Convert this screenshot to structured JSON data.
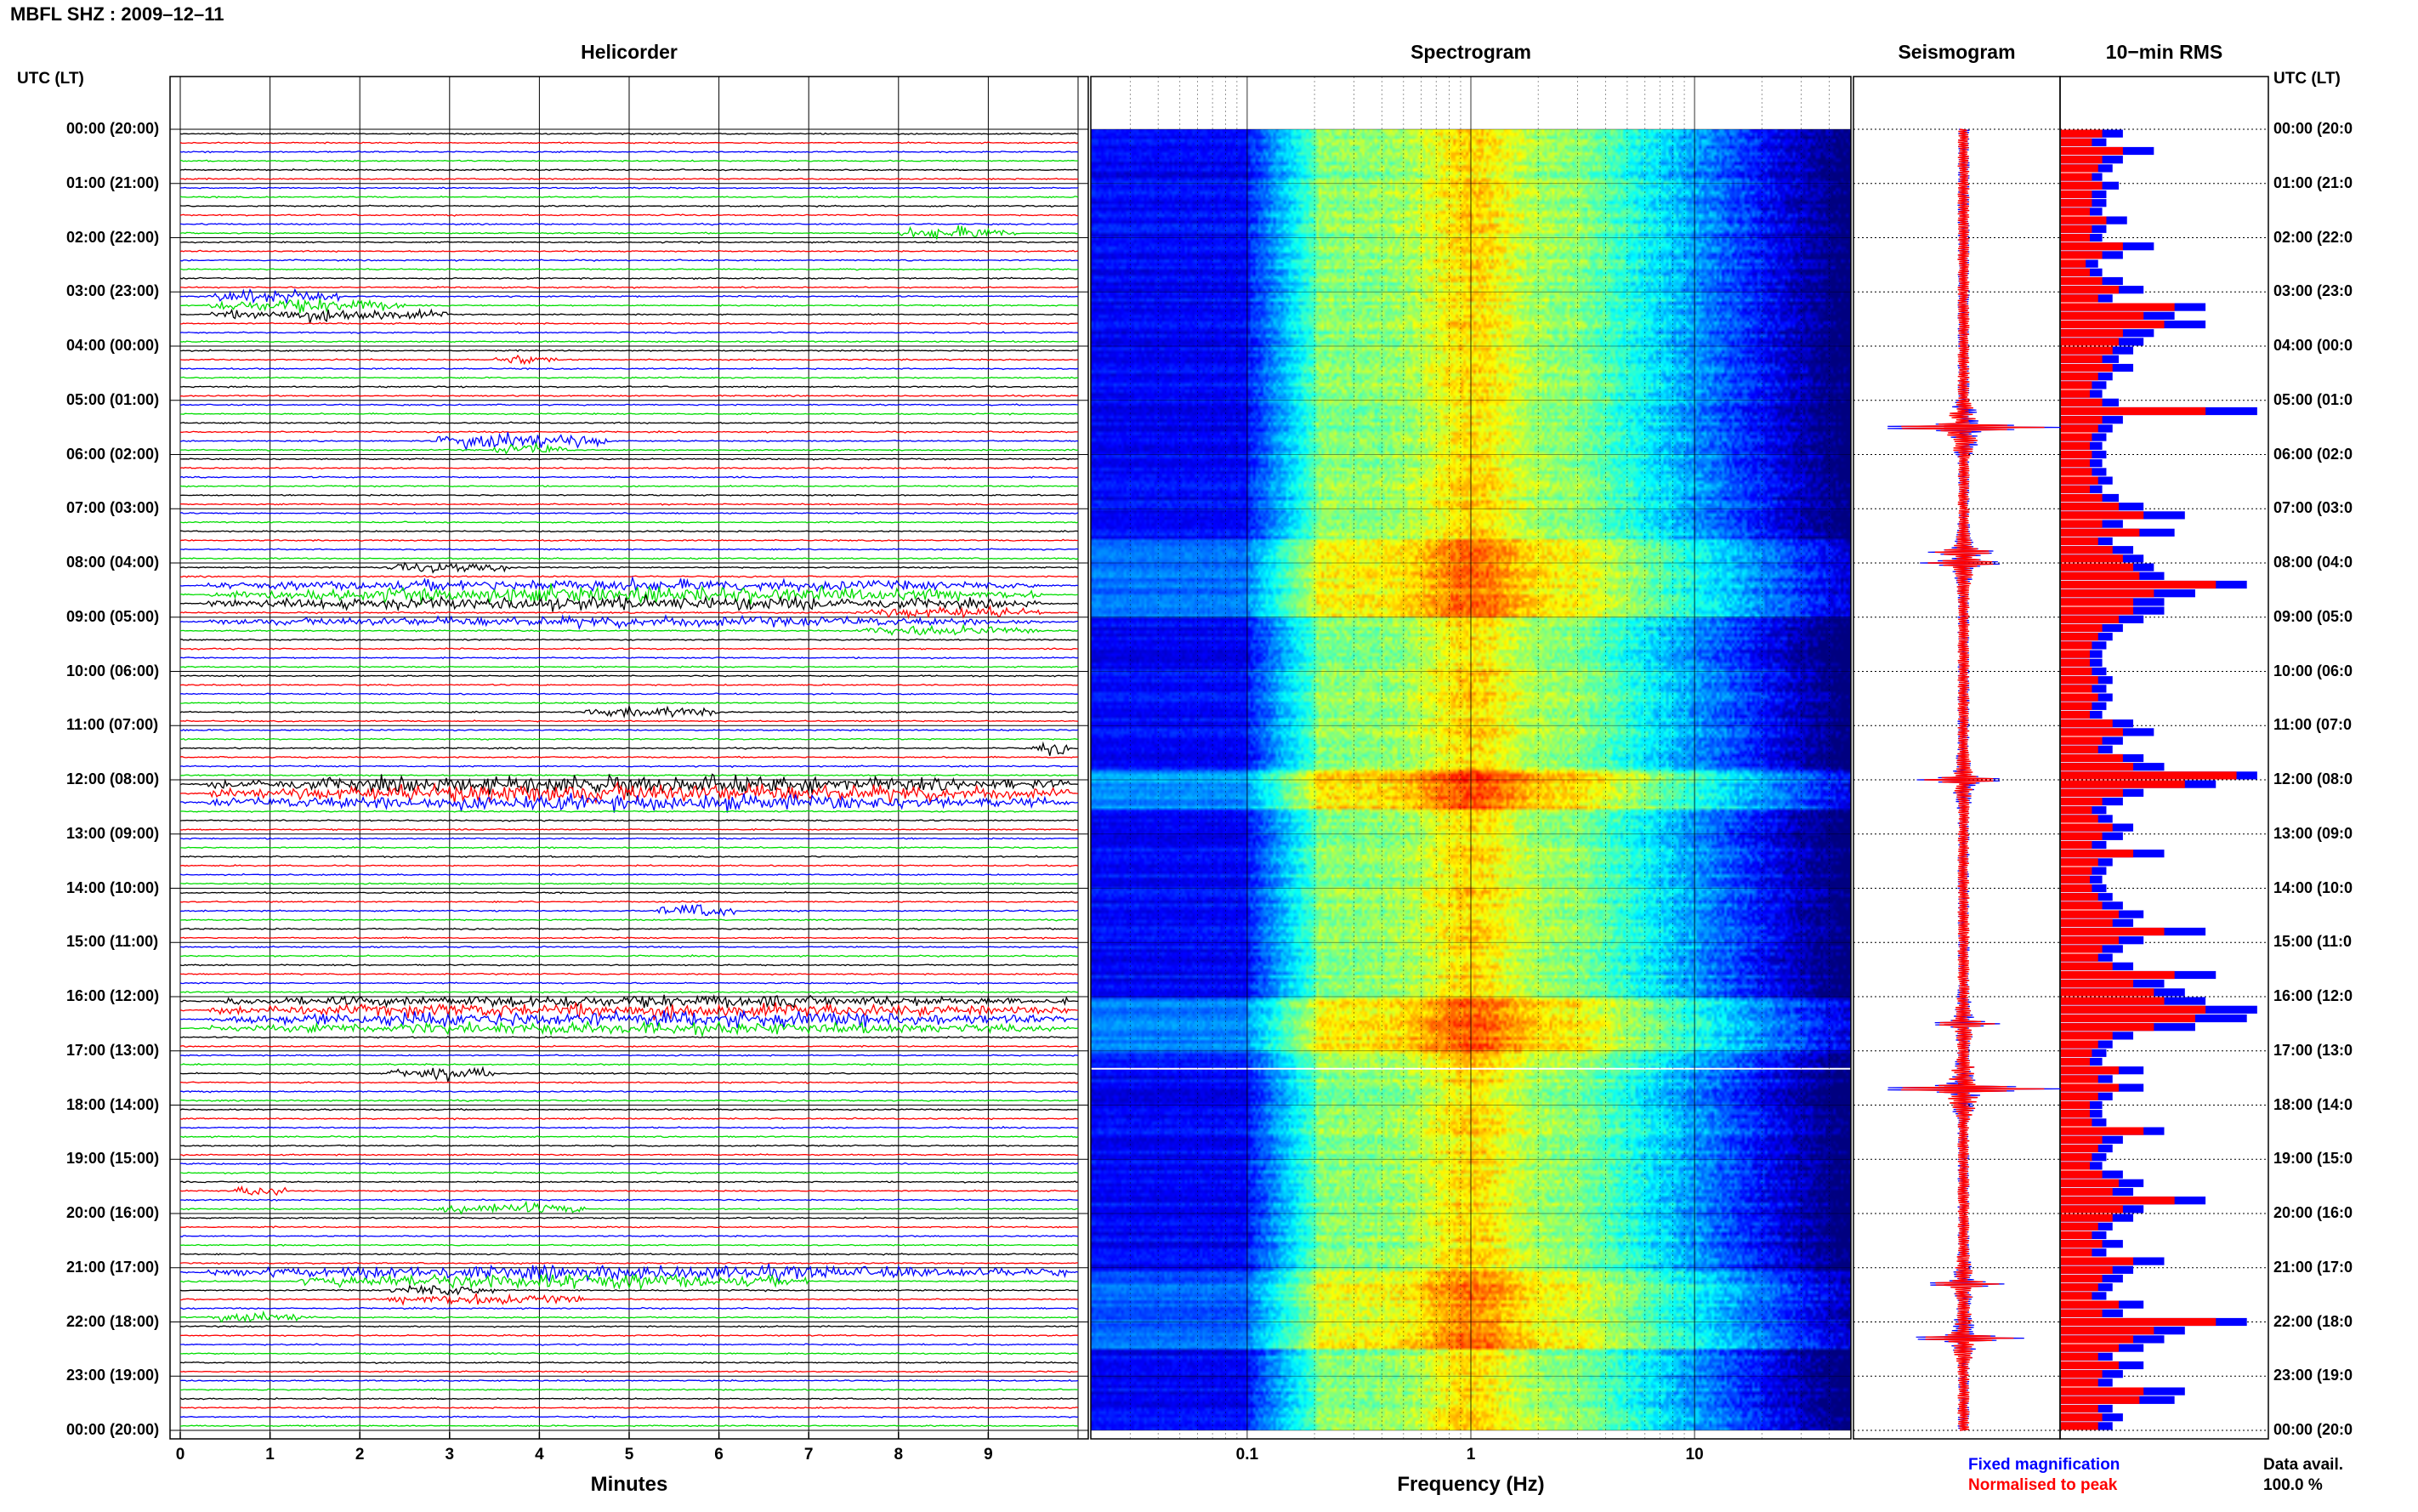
{
  "title": "MBFL SHZ : 2009–12–11",
  "panels": {
    "helicorder": "Helicorder",
    "spectrogram": "Spectrogram",
    "seismogram": "Seismogram",
    "rms": "10−min RMS"
  },
  "utc_header_left": "UTC (LT)",
  "utc_header_right": "UTC (LT)",
  "time_labels": [
    "00:00 (20:00)",
    "01:00 (21:00)",
    "02:00 (22:00)",
    "03:00 (23:00)",
    "04:00 (00:00)",
    "05:00 (01:00)",
    "06:00 (02:00)",
    "07:00 (03:00)",
    "08:00 (04:00)",
    "09:00 (05:00)",
    "10:00 (06:00)",
    "11:00 (07:00)",
    "12:00 (08:00)",
    "13:00 (09:00)",
    "14:00 (10:00)",
    "15:00 (11:00)",
    "16:00 (12:00)",
    "17:00 (13:00)",
    "18:00 (14:00)",
    "19:00 (15:00)",
    "20:00 (16:00)",
    "21:00 (17:00)",
    "22:00 (18:00)",
    "23:00 (19:00)",
    "00:00 (20:00)"
  ],
  "time_labels_right": [
    "00:00 (20:0",
    "01:00 (21:0",
    "02:00 (22:0",
    "03:00 (23:0",
    "04:00 (00:0",
    "05:00 (01:0",
    "06:00 (02:0",
    "07:00 (03:0",
    "08:00 (04:0",
    "09:00 (05:0",
    "10:00 (06:0",
    "11:00 (07:0",
    "12:00 (08:0",
    "13:00 (09:0",
    "14:00 (10:0",
    "15:00 (11:0",
    "16:00 (12:0",
    "17:00 (13:0",
    "18:00 (14:0",
    "19:00 (15:0",
    "20:00 (16:0",
    "21:00 (17:0",
    "22:00 (18:0",
    "23:00 (19:0",
    "00:00 (20:0"
  ],
  "x_axis": {
    "helicorder_label": "Minutes",
    "helicorder_ticks": [
      "0",
      "1",
      "2",
      "3",
      "4",
      "5",
      "6",
      "7",
      "8",
      "9"
    ],
    "spectrogram_label": "Frequency (Hz)",
    "spectrogram_ticks": [
      "0.1",
      "1",
      "10"
    ]
  },
  "legend": {
    "fixed": "Fixed magnification",
    "normalised": "Normalised to peak",
    "fixed_color": "#0000ff",
    "normalised_color": "#ff0000"
  },
  "data_avail": {
    "label": "Data avail.",
    "value": "100.0 %"
  },
  "chart_data": {
    "type": "heatmap",
    "title": "MBFL SHZ : 2009–12–11",
    "panels": [
      "Helicorder",
      "Spectrogram",
      "Seismogram",
      "10−min RMS"
    ],
    "helicorder": {
      "xlabel": "Minutes",
      "xlim": [
        0,
        10
      ],
      "rows": 144,
      "trace_colors": [
        "#000000",
        "#ff0000",
        "#0000ff",
        "#00dd00"
      ],
      "events": [
        {
          "row": 11,
          "start": 8.0,
          "end": 9.3,
          "amp": 0.65
        },
        {
          "row": 18,
          "start": 0.3,
          "end": 1.8,
          "amp": 0.7
        },
        {
          "row": 19,
          "start": 0.3,
          "end": 2.5,
          "amp": 0.7
        },
        {
          "row": 20,
          "start": 0.3,
          "end": 3.0,
          "amp": 0.6
        },
        {
          "row": 25,
          "start": 3.5,
          "end": 4.2,
          "amp": 0.5
        },
        {
          "row": 34,
          "start": 2.8,
          "end": 4.8,
          "amp": 0.9
        },
        {
          "row": 35,
          "start": 3.5,
          "end": 4.3,
          "amp": 0.6
        },
        {
          "row": 48,
          "start": 2.3,
          "end": 3.7,
          "amp": 0.5
        },
        {
          "row": 50,
          "start": 0.3,
          "end": 9.6,
          "amp": 0.6
        },
        {
          "row": 51,
          "start": 0.3,
          "end": 9.6,
          "amp": 0.8
        },
        {
          "row": 52,
          "start": 0.3,
          "end": 9.6,
          "amp": 0.7
        },
        {
          "row": 53,
          "start": 7.5,
          "end": 9.6,
          "amp": 0.6
        },
        {
          "row": 54,
          "start": 0.3,
          "end": 9.6,
          "amp": 0.5
        },
        {
          "row": 55,
          "start": 7.5,
          "end": 9.6,
          "amp": 0.5
        },
        {
          "row": 64,
          "start": 4.5,
          "end": 6.0,
          "amp": 0.5
        },
        {
          "row": 68,
          "start": 9.5,
          "end": 9.9,
          "amp": 0.6
        },
        {
          "row": 72,
          "start": 0.3,
          "end": 9.9,
          "amp": 0.9
        },
        {
          "row": 73,
          "start": 0.3,
          "end": 9.9,
          "amp": 1.0
        },
        {
          "row": 74,
          "start": 0.3,
          "end": 9.9,
          "amp": 0.8
        },
        {
          "row": 86,
          "start": 5.3,
          "end": 6.2,
          "amp": 0.7
        },
        {
          "row": 96,
          "start": 0.5,
          "end": 9.9,
          "amp": 0.6
        },
        {
          "row": 97,
          "start": 0.3,
          "end": 9.9,
          "amp": 0.7
        },
        {
          "row": 98,
          "start": 0.3,
          "end": 9.9,
          "amp": 0.8
        },
        {
          "row": 99,
          "start": 0.3,
          "end": 9.9,
          "amp": 0.6
        },
        {
          "row": 104,
          "start": 2.3,
          "end": 3.5,
          "amp": 0.8
        },
        {
          "row": 117,
          "start": 0.6,
          "end": 1.2,
          "amp": 0.6
        },
        {
          "row": 119,
          "start": 2.8,
          "end": 4.5,
          "amp": 0.6
        },
        {
          "row": 126,
          "start": 0.3,
          "end": 9.9,
          "amp": 0.7
        },
        {
          "row": 127,
          "start": 1.3,
          "end": 7.0,
          "amp": 0.8
        },
        {
          "row": 128,
          "start": 2.3,
          "end": 3.5,
          "amp": 0.6
        },
        {
          "row": 129,
          "start": 2.3,
          "end": 4.5,
          "amp": 0.6
        },
        {
          "row": 131,
          "start": 0.3,
          "end": 1.5,
          "amp": 0.5
        }
      ]
    },
    "spectrogram": {
      "xlabel": "Frequency (Hz)",
      "xscale": "log",
      "xlim": [
        0.02,
        50
      ],
      "ylim_hours": [
        0,
        24
      ]
    },
    "seismogram": {
      "spikes": [
        {
          "hour": 5.5,
          "amp": 1.0
        },
        {
          "hour": 7.8,
          "amp": 0.3
        },
        {
          "hour": 8.0,
          "amp": 0.4
        },
        {
          "hour": 12.0,
          "amp": 0.45
        },
        {
          "hour": 16.5,
          "amp": 0.35
        },
        {
          "hour": 17.7,
          "amp": 1.0
        },
        {
          "hour": 21.3,
          "amp": 0.4
        },
        {
          "hour": 22.3,
          "amp": 0.6
        }
      ]
    },
    "rms": {
      "xlabel": "",
      "series": [
        {
          "name": "Fixed magnification",
          "values": [
            0.3,
            0.22,
            0.45,
            0.3,
            0.25,
            0.2,
            0.28,
            0.22,
            0.22,
            0.2,
            0.32,
            0.22,
            0.2,
            0.45,
            0.3,
            0.18,
            0.2,
            0.3,
            0.4,
            0.25,
            0.7,
            0.55,
            0.7,
            0.45,
            0.4,
            0.35,
            0.28,
            0.35,
            0.25,
            0.22,
            0.2,
            0.28,
            0.95,
            0.3,
            0.25,
            0.22,
            0.2,
            0.22,
            0.2,
            0.22,
            0.25,
            0.2,
            0.28,
            0.4,
            0.6,
            0.3,
            0.55,
            0.25,
            0.35,
            0.4,
            0.45,
            0.5,
            0.9,
            0.65,
            0.5,
            0.5,
            0.4,
            0.3,
            0.25,
            0.22,
            0.2,
            0.2,
            0.22,
            0.25,
            0.22,
            0.25,
            0.22,
            0.2,
            0.35,
            0.45,
            0.3,
            0.25,
            0.4,
            0.5,
            0.95,
            0.75,
            0.4,
            0.3,
            0.22,
            0.25,
            0.35,
            0.3,
            0.22,
            0.5,
            0.25,
            0.22,
            0.2,
            0.22,
            0.25,
            0.3,
            0.4,
            0.35,
            0.7,
            0.4,
            0.3,
            0.25,
            0.35,
            0.75,
            0.5,
            0.6,
            0.7,
            0.95,
            0.9,
            0.65,
            0.35,
            0.25,
            0.22,
            0.2,
            0.4,
            0.25,
            0.4,
            0.25,
            0.2,
            0.2,
            0.22,
            0.5,
            0.3,
            0.25,
            0.22,
            0.2,
            0.3,
            0.4,
            0.35,
            0.7,
            0.4,
            0.35,
            0.25,
            0.22,
            0.3,
            0.22,
            0.5,
            0.35,
            0.3,
            0.25,
            0.22,
            0.4,
            0.3,
            0.9,
            0.6,
            0.5,
            0.4,
            0.25,
            0.4,
            0.3,
            0.25,
            0.6,
            0.55,
            0.25,
            0.3,
            0.25
          ]
        },
        {
          "name": "Normalised to peak",
          "values": [
            0.2,
            0.15,
            0.3,
            0.2,
            0.18,
            0.15,
            0.2,
            0.15,
            0.15,
            0.14,
            0.22,
            0.15,
            0.14,
            0.3,
            0.2,
            0.12,
            0.14,
            0.2,
            0.28,
            0.18,
            0.55,
            0.4,
            0.5,
            0.3,
            0.28,
            0.25,
            0.2,
            0.25,
            0.18,
            0.15,
            0.14,
            0.2,
            0.7,
            0.2,
            0.18,
            0.15,
            0.14,
            0.15,
            0.14,
            0.15,
            0.18,
            0.14,
            0.2,
            0.28,
            0.4,
            0.2,
            0.38,
            0.18,
            0.25,
            0.3,
            0.35,
            0.38,
            0.75,
            0.45,
            0.35,
            0.35,
            0.28,
            0.2,
            0.18,
            0.15,
            0.14,
            0.14,
            0.15,
            0.18,
            0.15,
            0.18,
            0.15,
            0.14,
            0.25,
            0.3,
            0.2,
            0.18,
            0.3,
            0.35,
            0.85,
            0.6,
            0.3,
            0.2,
            0.15,
            0.18,
            0.25,
            0.2,
            0.15,
            0.35,
            0.18,
            0.15,
            0.14,
            0.15,
            0.18,
            0.2,
            0.28,
            0.25,
            0.5,
            0.28,
            0.2,
            0.18,
            0.25,
            0.55,
            0.35,
            0.45,
            0.5,
            0.7,
            0.65,
            0.45,
            0.25,
            0.18,
            0.15,
            0.14,
            0.28,
            0.18,
            0.28,
            0.18,
            0.14,
            0.14,
            0.15,
            0.4,
            0.2,
            0.18,
            0.15,
            0.14,
            0.2,
            0.28,
            0.25,
            0.55,
            0.3,
            0.25,
            0.18,
            0.15,
            0.2,
            0.15,
            0.35,
            0.25,
            0.2,
            0.18,
            0.15,
            0.28,
            0.2,
            0.75,
            0.45,
            0.35,
            0.28,
            0.18,
            0.28,
            0.2,
            0.18,
            0.4,
            0.38,
            0.18,
            0.2,
            0.18
          ]
        }
      ]
    }
  }
}
